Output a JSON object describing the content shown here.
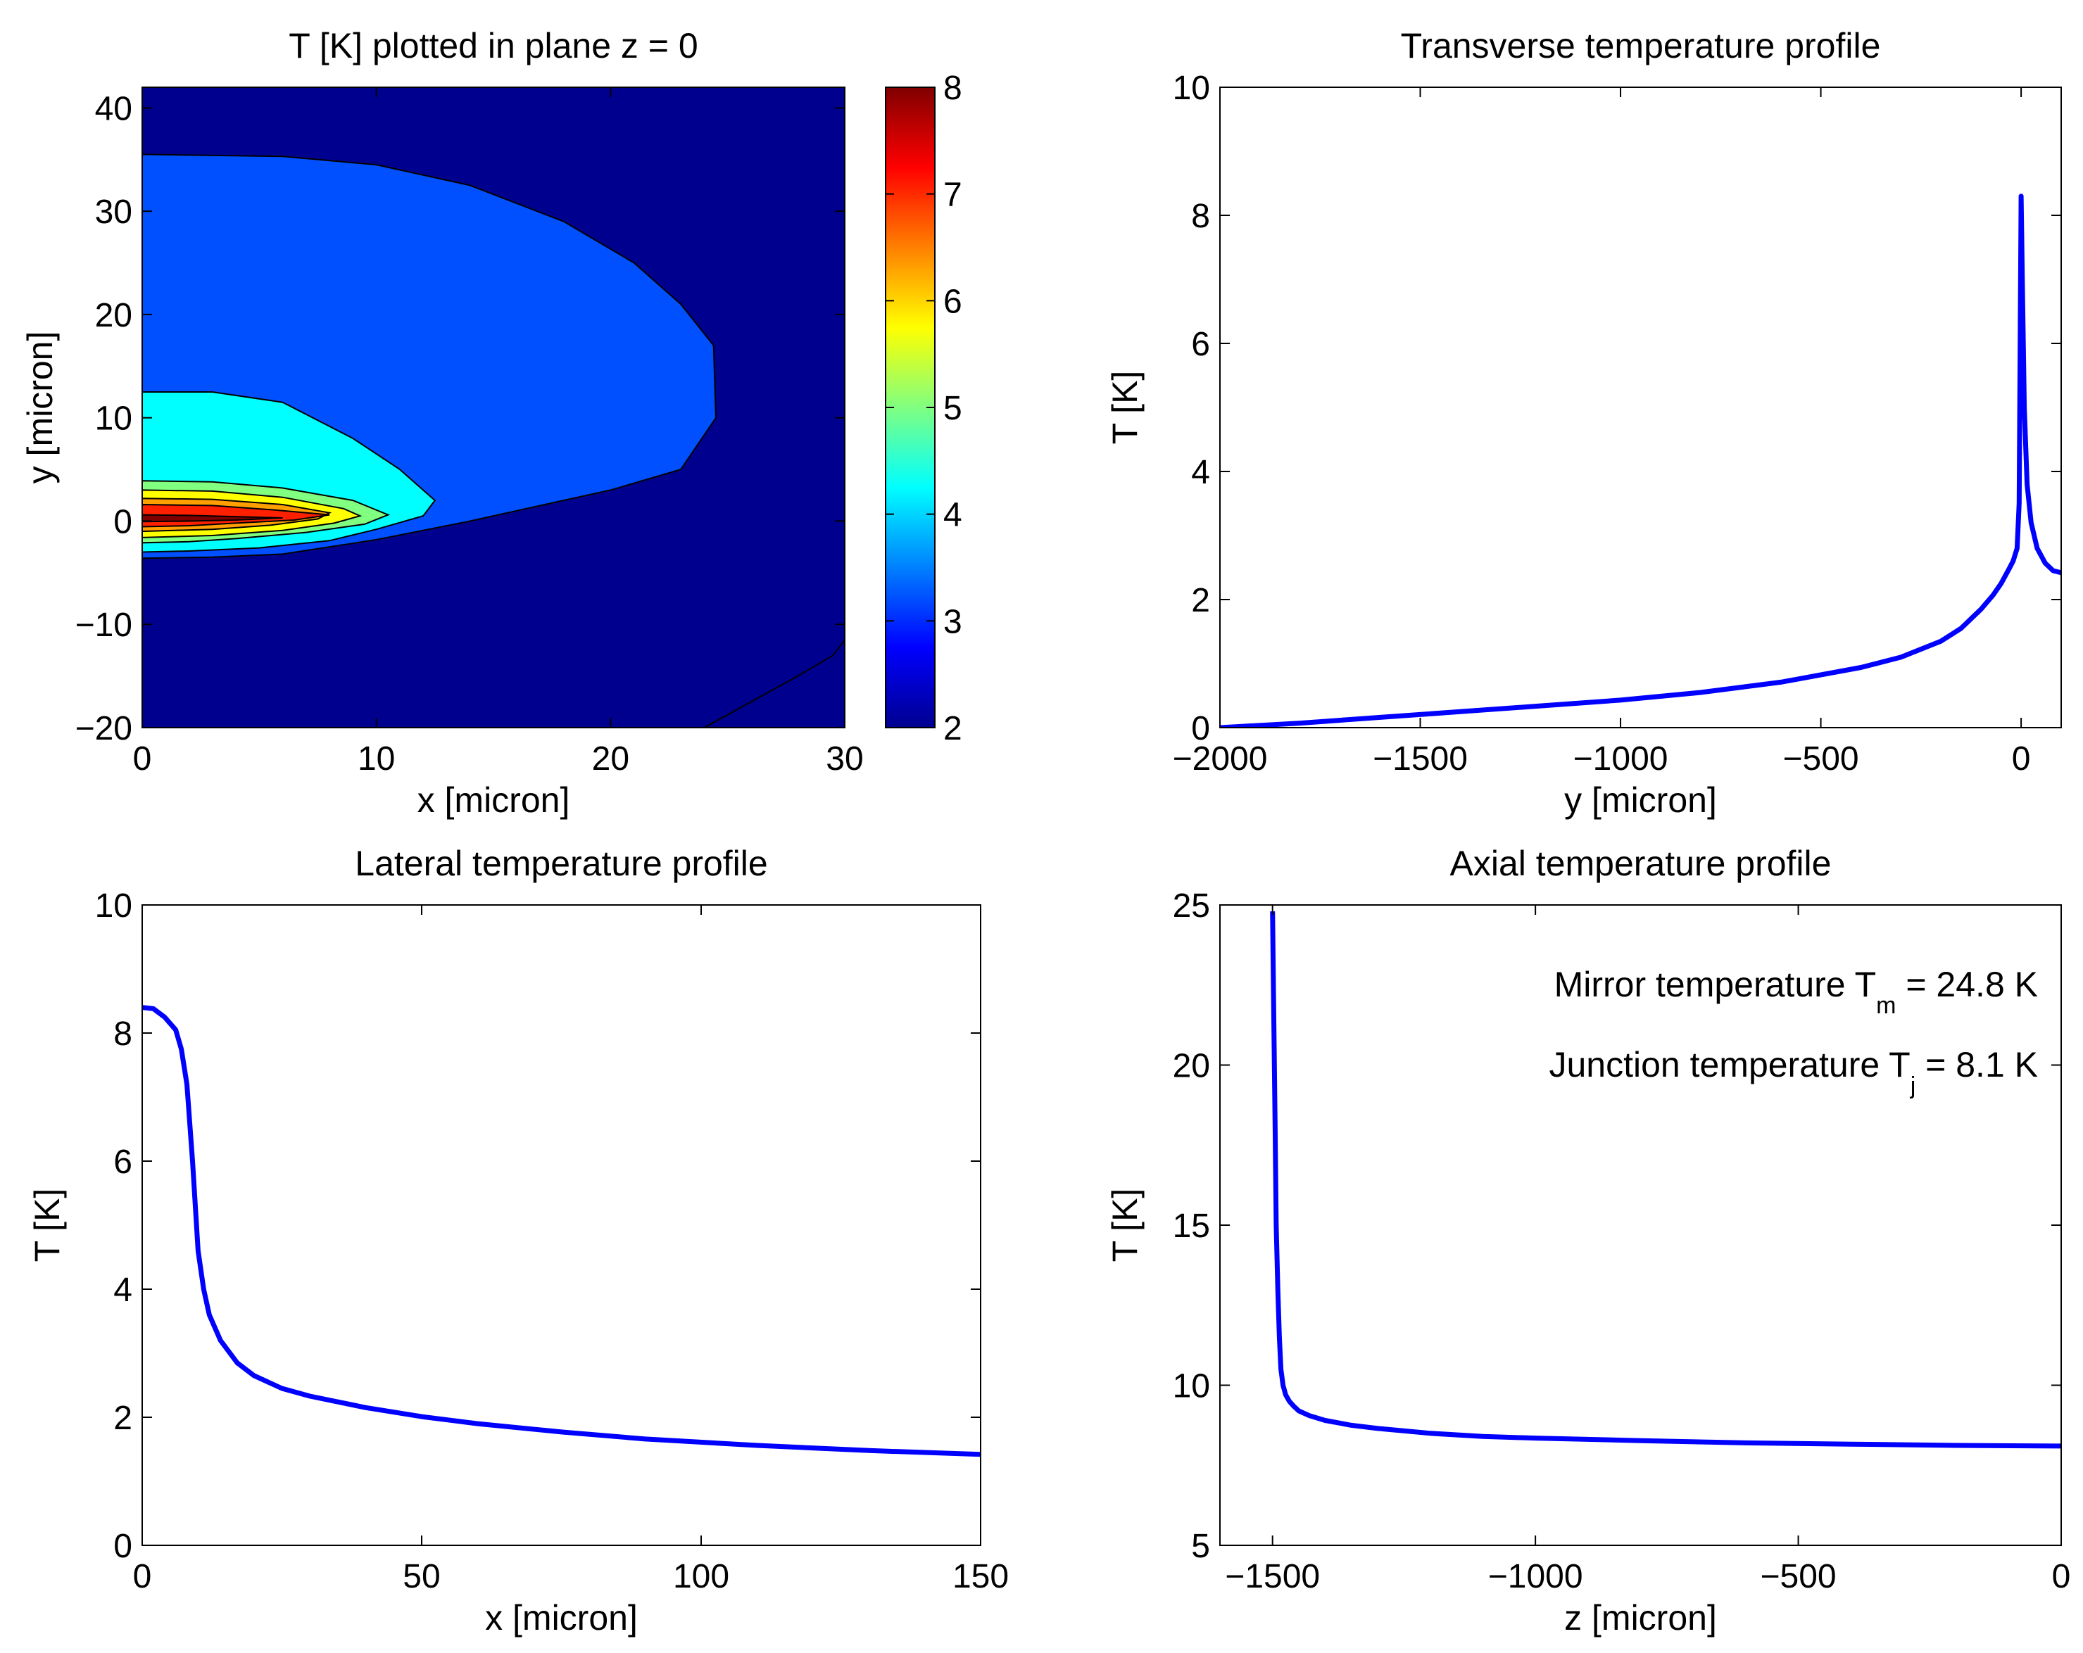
{
  "chart_data": [
    {
      "type": "contour",
      "title": "T [K] plotted in plane z = 0",
      "xlabel": "x [micron]",
      "ylabel": "y [micron]",
      "xlim": [
        0,
        30
      ],
      "ylim": [
        -20,
        42
      ],
      "xticks": [
        0,
        10,
        20,
        30
      ],
      "yticks": [
        -20,
        -10,
        0,
        10,
        20,
        30,
        40
      ],
      "levels": [
        {
          "value": 2,
          "color": "#00008f"
        },
        {
          "value": 3,
          "color": "#0050ff"
        },
        {
          "value": 4,
          "color": "#00ffff"
        },
        {
          "value": 5,
          "color": "#80ff80"
        },
        {
          "value": 6,
          "color": "#ffff00"
        },
        {
          "value": 6.5,
          "color": "#ffa000"
        },
        {
          "value": 7,
          "color": "#ff2000"
        },
        {
          "value": 8,
          "color": "#800000"
        }
      ],
      "regions": [
        {
          "level": 3,
          "points": [
            [
              0,
              35.5
            ],
            [
              6,
              35.3
            ],
            [
              10,
              34.5
            ],
            [
              14,
              32.5
            ],
            [
              18,
              29
            ],
            [
              21,
              25
            ],
            [
              23,
              21
            ],
            [
              24.4,
              17
            ],
            [
              24.5,
              10
            ],
            [
              23,
              5
            ],
            [
              20,
              3
            ],
            [
              17,
              1.5
            ],
            [
              14,
              0
            ],
            [
              10,
              -1.8
            ],
            [
              6,
              -3.2
            ],
            [
              3,
              -3.5
            ],
            [
              0,
              -3.6
            ]
          ]
        },
        {
          "level": 4,
          "points": [
            [
              0,
              12.5
            ],
            [
              3,
              12.5
            ],
            [
              6,
              11.5
            ],
            [
              9,
              8
            ],
            [
              11,
              5
            ],
            [
              12.5,
              2
            ],
            [
              12,
              0.5
            ],
            [
              10,
              -0.8
            ],
            [
              8,
              -1.9
            ],
            [
              5,
              -2.6
            ],
            [
              2,
              -2.9
            ],
            [
              0,
              -3
            ]
          ]
        },
        {
          "level": 5,
          "points": [
            [
              0,
              3.9
            ],
            [
              3,
              3.8
            ],
            [
              6,
              3.2
            ],
            [
              9,
              2
            ],
            [
              10.5,
              0.6
            ],
            [
              9.5,
              -0.3
            ],
            [
              7,
              -1.1
            ],
            [
              4,
              -1.7
            ],
            [
              2,
              -2
            ],
            [
              0,
              -2.1
            ]
          ]
        },
        {
          "level": 6,
          "points": [
            [
              0,
              3
            ],
            [
              3,
              2.9
            ],
            [
              6,
              2.3
            ],
            [
              8.6,
              1.2
            ],
            [
              9.3,
              0.5
            ],
            [
              8.2,
              -0.2
            ],
            [
              6,
              -0.9
            ],
            [
              3,
              -1.4
            ],
            [
              0,
              -1.6
            ]
          ]
        },
        {
          "level": 6.5,
          "points": [
            [
              0,
              2.2
            ],
            [
              3,
              2.1
            ],
            [
              6,
              1.6
            ],
            [
              8,
              0.8
            ],
            [
              7.5,
              0.2
            ],
            [
              5.5,
              -0.4
            ],
            [
              3,
              -0.8
            ],
            [
              0,
              -1
            ]
          ]
        },
        {
          "level": 7,
          "points": [
            [
              0,
              1.6
            ],
            [
              3,
              1.5
            ],
            [
              5.5,
              1.1
            ],
            [
              8,
              0.6
            ],
            [
              6.5,
              0.1
            ],
            [
              4,
              -0.2
            ],
            [
              2,
              -0.45
            ],
            [
              0,
              -0.55
            ]
          ]
        },
        {
          "level": 8,
          "points": [
            [
              0,
              0.6
            ],
            [
              2,
              0.55
            ],
            [
              4.5,
              0.4
            ],
            [
              6,
              0.3
            ],
            [
              4,
              0.1
            ],
            [
              2,
              0
            ],
            [
              0,
              -0.05
            ]
          ]
        }
      ],
      "lower_contour": [
        [
          24,
          -20
        ],
        [
          26,
          -17.5
        ],
        [
          28,
          -15
        ],
        [
          29.5,
          -13
        ],
        [
          30,
          -11.5
        ]
      ],
      "colorbar": {
        "min": 2,
        "max": 8,
        "ticks": [
          2,
          3,
          4,
          5,
          6,
          7,
          8
        ]
      }
    },
    {
      "type": "line",
      "title": "Transverse temperature profile",
      "xlabel": "y [micron]",
      "ylabel": "T [K]",
      "xlim": [
        -2000,
        100
      ],
      "ylim": [
        0,
        10
      ],
      "xticks": [
        -2000,
        -1500,
        -1000,
        -500,
        0
      ],
      "yticks": [
        0,
        2,
        4,
        6,
        8,
        10
      ],
      "line_color": "#0000ff",
      "series": [
        {
          "name": "T",
          "x": [
            -2000,
            -1800,
            -1600,
            -1400,
            -1200,
            -1000,
            -800,
            -600,
            -400,
            -300,
            -200,
            -150,
            -100,
            -70,
            -50,
            -30,
            -20,
            -10,
            -5,
            0,
            3,
            8,
            15,
            25,
            40,
            60,
            80,
            100
          ],
          "y": [
            0,
            0.07,
            0.16,
            0.25,
            0.34,
            0.43,
            0.55,
            0.71,
            0.94,
            1.1,
            1.35,
            1.55,
            1.85,
            2.07,
            2.25,
            2.48,
            2.6,
            2.8,
            3.5,
            8.3,
            7,
            5,
            3.8,
            3.2,
            2.8,
            2.57,
            2.45,
            2.42
          ]
        }
      ]
    },
    {
      "type": "line",
      "title": "Lateral temperature profile",
      "xlabel": "x [micron]",
      "ylabel": "T [K]",
      "xlim": [
        0,
        150
      ],
      "ylim": [
        0,
        10
      ],
      "xticks": [
        0,
        50,
        100,
        150
      ],
      "yticks": [
        0,
        2,
        4,
        6,
        8,
        10
      ],
      "line_color": "#0000ff",
      "series": [
        {
          "name": "T",
          "x": [
            0,
            2,
            4,
            6,
            7,
            8,
            9,
            10,
            11,
            12,
            14,
            17,
            20,
            25,
            30,
            40,
            50,
            60,
            75,
            90,
            110,
            130,
            150
          ],
          "y": [
            8.4,
            8.38,
            8.25,
            8.05,
            7.75,
            7.2,
            6,
            4.6,
            4,
            3.6,
            3.2,
            2.85,
            2.65,
            2.45,
            2.33,
            2.15,
            2.01,
            1.9,
            1.77,
            1.66,
            1.56,
            1.48,
            1.42
          ]
        }
      ]
    },
    {
      "type": "line",
      "title": "Axial temperature profile",
      "xlabel": "z [micron]",
      "ylabel": "T [K]",
      "xlim": [
        -1600,
        0
      ],
      "ylim": [
        5,
        25
      ],
      "xticks": [
        -1500,
        -1000,
        -500,
        0
      ],
      "yticks": [
        5,
        10,
        15,
        20,
        25
      ],
      "line_color": "#0000ff",
      "series": [
        {
          "name": "T",
          "x": [
            -1500,
            -1498,
            -1495,
            -1493,
            -1490,
            -1487,
            -1484,
            -1480,
            -1475,
            -1468,
            -1460,
            -1450,
            -1430,
            -1400,
            -1350,
            -1300,
            -1200,
            -1100,
            -1000,
            -800,
            -600,
            -400,
            -200,
            0
          ],
          "y": [
            24.8,
            22,
            18,
            15,
            13,
            11.5,
            10.5,
            10,
            9.7,
            9.5,
            9.35,
            9.2,
            9.05,
            8.9,
            8.75,
            8.65,
            8.5,
            8.4,
            8.35,
            8.27,
            8.2,
            8.16,
            8.12,
            8.1
          ]
        }
      ],
      "annotations": [
        {
          "main": "Mirror temperature T",
          "sub": "m",
          "rest": " = 24.8 K"
        },
        {
          "main": "Junction temperature T",
          "sub": "j",
          "rest": " = 8.1 K"
        }
      ]
    }
  ]
}
